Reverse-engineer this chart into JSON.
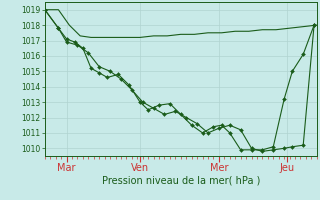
{
  "bg_color": "#c8eae8",
  "grid_color": "#b0d4d0",
  "line_color": "#1a5c1a",
  "marker_color": "#1a5c1a",
  "axis_label_color": "#1a5c1a",
  "tick_color": "#cc3333",
  "xlabel": "Pression niveau de la mer( hPa )",
  "ylim": [
    1009.5,
    1019.5
  ],
  "yticks": [
    1010,
    1011,
    1012,
    1013,
    1014,
    1015,
    1016,
    1017,
    1018,
    1019
  ],
  "xtick_labels": [
    "Mar",
    "Ven",
    "Mer",
    "Jeu"
  ],
  "xtick_positions": [
    0.08,
    0.35,
    0.64,
    0.89
  ],
  "series1_x": [
    0.0,
    0.05,
    0.09,
    0.13,
    0.17,
    0.21,
    0.25,
    0.3,
    0.35,
    0.4,
    0.45,
    0.5,
    0.55,
    0.6,
    0.65,
    0.7,
    0.75,
    0.8,
    0.85,
    0.9,
    0.95,
    1.0
  ],
  "series1_y": [
    1019.0,
    1019.0,
    1018.0,
    1017.3,
    1017.2,
    1017.2,
    1017.2,
    1017.2,
    1017.2,
    1017.3,
    1017.3,
    1017.4,
    1017.4,
    1017.5,
    1017.5,
    1017.6,
    1017.6,
    1017.7,
    1017.7,
    1017.8,
    1017.9,
    1018.0
  ],
  "series2_x": [
    0.0,
    0.05,
    0.08,
    0.11,
    0.14,
    0.17,
    0.2,
    0.23,
    0.27,
    0.31,
    0.35,
    0.38,
    0.42,
    0.46,
    0.5,
    0.54,
    0.58,
    0.62,
    0.65,
    0.68,
    0.72,
    0.76,
    0.8,
    0.84,
    0.88,
    0.91,
    0.95,
    0.99
  ],
  "series2_y": [
    1019.0,
    1017.8,
    1017.1,
    1016.9,
    1016.5,
    1015.2,
    1014.9,
    1014.6,
    1014.8,
    1014.1,
    1013.0,
    1012.5,
    1012.8,
    1012.9,
    1012.2,
    1011.5,
    1011.0,
    1011.4,
    1011.5,
    1011.0,
    1009.9,
    1009.9,
    1009.9,
    1010.1,
    1013.2,
    1015.0,
    1016.1,
    1018.0
  ],
  "series3_x": [
    0.0,
    0.05,
    0.08,
    0.12,
    0.16,
    0.2,
    0.24,
    0.28,
    0.32,
    0.36,
    0.4,
    0.44,
    0.48,
    0.52,
    0.56,
    0.6,
    0.64,
    0.68,
    0.72,
    0.76,
    0.8,
    0.84,
    0.88,
    0.91,
    0.95,
    0.99
  ],
  "series3_y": [
    1019.0,
    1017.8,
    1016.9,
    1016.7,
    1016.2,
    1015.3,
    1015.0,
    1014.5,
    1013.8,
    1013.0,
    1012.6,
    1012.2,
    1012.4,
    1012.0,
    1011.6,
    1011.0,
    1011.3,
    1011.5,
    1011.2,
    1010.0,
    1009.8,
    1009.9,
    1010.0,
    1010.1,
    1010.2,
    1018.0
  ]
}
